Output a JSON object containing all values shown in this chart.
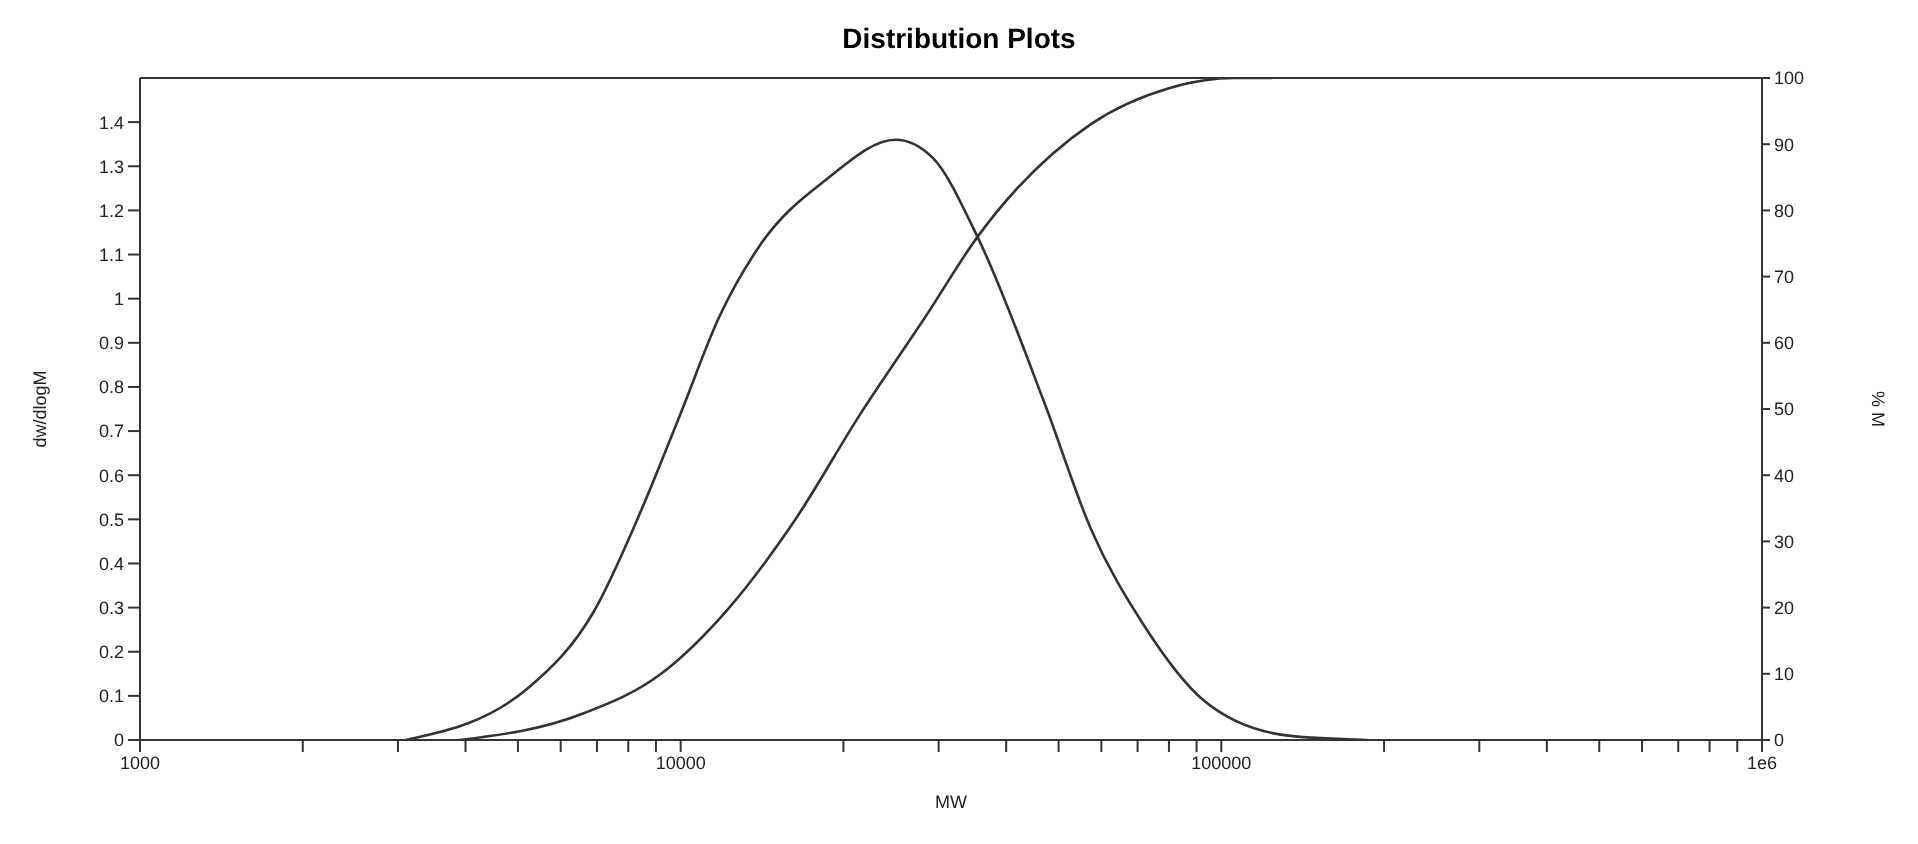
{
  "chart_data": {
    "type": "line",
    "title": "Distribution Plots",
    "xlabel": "MW",
    "ylabel": "dw/dlogM",
    "y2label": "% M",
    "log": "x",
    "marker": "none",
    "line_style": "solid",
    "xlim": [
      1000,
      1000000
    ],
    "xticks": [
      1000,
      {
        "value": 2000,
        "label": null
      },
      {
        "value": 3000,
        "label": null
      },
      {
        "value": 4000,
        "label": null
      },
      {
        "value": 5000,
        "label": null
      },
      {
        "value": 6000,
        "label": null
      },
      {
        "value": 7000,
        "label": null
      },
      {
        "value": 8000,
        "label": null
      },
      {
        "value": 9000,
        "label": null
      },
      10000,
      {
        "value": 20000,
        "label": null
      },
      {
        "value": 30000,
        "label": null
      },
      {
        "value": 40000,
        "label": null
      },
      {
        "value": 50000,
        "label": null
      },
      {
        "value": 60000,
        "label": null
      },
      {
        "value": 70000,
        "label": null
      },
      {
        "value": 80000,
        "label": null
      },
      {
        "value": 90000,
        "label": null
      },
      100000,
      {
        "value": 200000,
        "label": null
      },
      {
        "value": 300000,
        "label": null
      },
      {
        "value": 400000,
        "label": null
      },
      {
        "value": 500000,
        "label": null
      },
      {
        "value": 600000,
        "label": null
      },
      {
        "value": 700000,
        "label": null
      },
      {
        "value": 800000,
        "label": null
      },
      {
        "value": 900000,
        "label": null
      },
      {
        "value": 1000000,
        "label": "1e6"
      }
    ],
    "ylim": [
      0,
      1.5
    ],
    "yticks": [
      0,
      0.1,
      0.2,
      0.3,
      0.4,
      0.5,
      0.6,
      0.7,
      0.8,
      0.9,
      1,
      1.1,
      1.2,
      1.3,
      1.4
    ],
    "y2lim": [
      0,
      100
    ],
    "y2ticks": [
      0,
      10,
      20,
      30,
      40,
      50,
      60,
      70,
      80,
      90,
      100
    ],
    "series": [
      {
        "color": "#333333",
        "x": [
          3100,
          5250,
          6900,
          8450,
          10000,
          11800,
          14000,
          18600,
          25000,
          29200,
          35400,
          47200,
          57300,
          71900,
          92700,
          133000,
          186000
        ],
        "values": [
          0,
          0.12,
          0.29,
          0.52,
          0.74,
          0.96,
          1.12,
          1.27,
          1.36,
          1.32,
          1.14,
          0.76,
          0.48,
          0.26,
          0.09,
          0.01,
          0
        ]
      },
      {
        "color": "#333333",
        "axis": "y2",
        "x": [
          3900,
          6600,
          9200,
          12300,
          16200,
          21400,
          28400,
          35400,
          57300,
          80300,
          106000,
          124000
        ],
        "values": [
          0,
          4,
          10,
          20,
          33,
          49,
          64,
          76,
          93,
          98.5,
          100,
          100
        ]
      }
    ]
  }
}
